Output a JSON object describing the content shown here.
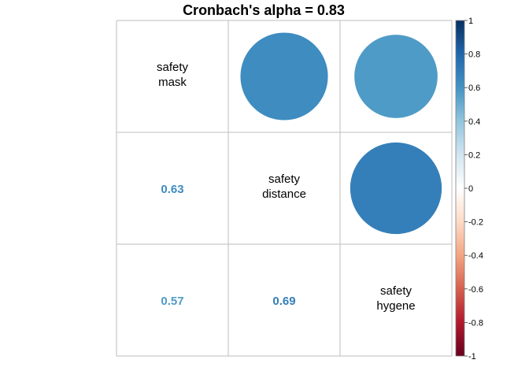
{
  "chart_data": {
    "type": "heatmap",
    "title": "Cronbach's alpha =  0.83",
    "variables": [
      [
        "safety",
        "mask"
      ],
      [
        "safety",
        "distance"
      ],
      [
        "safety",
        "hygene"
      ]
    ],
    "matrix": [
      [
        1,
        0.63,
        0.57
      ],
      [
        0.63,
        1,
        0.69
      ],
      [
        0.57,
        0.69,
        1
      ]
    ],
    "upper_method": "circle",
    "lower_method": "number",
    "diagonal": "labels",
    "colorbar": {
      "range": [
        -1,
        1
      ],
      "ticks": [
        "1",
        "0.8",
        "0.6",
        "0.4",
        "0.2",
        "0",
        "-0.2",
        "-0.4",
        "-0.6",
        "-0.8",
        "-1"
      ],
      "colors": [
        "#67001F",
        "#B2182B",
        "#D6604D",
        "#F4A582",
        "#FDDBC7",
        "#FFFFFF",
        "#D1E5F0",
        "#92C5DE",
        "#4393C3",
        "#2166AC",
        "#053061"
      ]
    },
    "grid_color": "#BEBEBE",
    "legend_position": "right"
  }
}
